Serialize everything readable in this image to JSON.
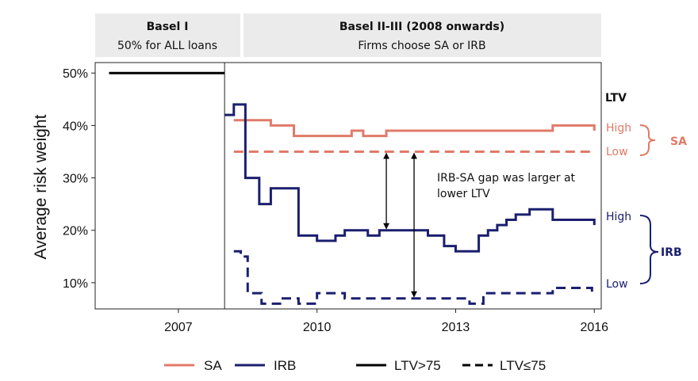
{
  "panels": [
    {
      "title": "Basel I",
      "subtitle": "50% for ALL loans"
    },
    {
      "title": "Basel II-III (2008 onwards)",
      "subtitle": "Firms choose SA or IRB"
    }
  ],
  "annotations": {
    "gap_text_line1": "IRB-SA gap was larger at",
    "gap_text_line2": "lower LTV"
  },
  "side_labels": {
    "ltv_header": "LTV",
    "sa": {
      "high": "High",
      "low": "Low",
      "group": "SA"
    },
    "irb": {
      "high": "High",
      "low": "Low",
      "group": "IRB"
    }
  },
  "legend": [
    {
      "label": "SA",
      "color": "#e07a68",
      "style": "solid"
    },
    {
      "label": "IRB",
      "color": "#1a1f6e",
      "style": "solid"
    },
    {
      "label": "LTV>75",
      "color": "#000000",
      "style": "solid"
    },
    {
      "label": "LTV≤75",
      "color": "#000000",
      "style": "dashed"
    }
  ],
  "colors": {
    "sa": "#e07a68",
    "irb": "#1a1f6e",
    "basel1": "#000000"
  },
  "chart_data": {
    "type": "line",
    "title": "",
    "xlabel": "",
    "ylabel": "Average risk weight",
    "xlim": [
      2005.2,
      2016.15
    ],
    "ylim": [
      5,
      52
    ],
    "x_ticks": [
      2007,
      2010,
      2013,
      2016
    ],
    "x_tick_labels": [
      "2007",
      "2010",
      "2013",
      "2016"
    ],
    "y_ticks": [
      10,
      20,
      30,
      40,
      50
    ],
    "y_tick_labels": [
      "10%",
      "20%",
      "30%",
      "40%",
      "50%"
    ],
    "step": true,
    "series": [
      {
        "name": "Basel I",
        "group": "Basel I",
        "ltv": "LTV>75",
        "style": "solid",
        "x": [
          2005.5,
          2008.0
        ],
        "y": [
          50,
          50
        ]
      },
      {
        "name": "SA",
        "group": "SA",
        "ltv": "LTV>75",
        "style": "solid",
        "x": [
          2008.2,
          2008.45,
          2009.0,
          2009.5,
          2010.75,
          2011.0,
          2011.5,
          2012.0,
          2015.1,
          2015.6,
          2016.0
        ],
        "y": [
          41,
          41,
          40,
          38,
          39,
          38,
          39,
          39,
          40,
          40,
          39
        ]
      },
      {
        "name": "SA",
        "group": "SA",
        "ltv": "LTV≤75",
        "style": "dashed",
        "x": [
          2008.2,
          2016.0
        ],
        "y": [
          35,
          35
        ]
      },
      {
        "name": "IRB",
        "group": "IRB",
        "ltv": "LTV>75",
        "style": "solid",
        "x": [
          2008.0,
          2008.2,
          2008.45,
          2008.75,
          2009.0,
          2009.5,
          2009.6,
          2010.0,
          2010.4,
          2010.6,
          2011.1,
          2011.35,
          2011.8,
          2012.0,
          2012.4,
          2012.75,
          2013.0,
          2013.5,
          2013.7,
          2013.9,
          2014.1,
          2014.3,
          2014.6,
          2015.0,
          2015.1,
          2015.6,
          2016.0
        ],
        "y": [
          42,
          44,
          30,
          25,
          28,
          28,
          19,
          18,
          19,
          20,
          19,
          20,
          20,
          20,
          19,
          17,
          16,
          19,
          20,
          21,
          22,
          23,
          24,
          24,
          22,
          22,
          21
        ]
      },
      {
        "name": "IRB",
        "group": "IRB",
        "ltv": "LTV≤75",
        "style": "dashed",
        "x": [
          2008.2,
          2008.35,
          2008.5,
          2008.8,
          2009.2,
          2009.6,
          2010.0,
          2010.6,
          2011.0,
          2012.5,
          2012.9,
          2013.3,
          2013.6,
          2014.4,
          2015.1,
          2015.5,
          2015.95
        ],
        "y": [
          16,
          15,
          8,
          6,
          7,
          6,
          8,
          7,
          7,
          7,
          7,
          6,
          8,
          8,
          9,
          9,
          8
        ]
      }
    ],
    "vertical_divider_x": 2008.0,
    "gap_arrows": [
      {
        "x": 2011.5,
        "y_from": 35,
        "y_to": 20
      },
      {
        "x": 2012.1,
        "y_from": 35,
        "y_to": 7
      }
    ]
  }
}
